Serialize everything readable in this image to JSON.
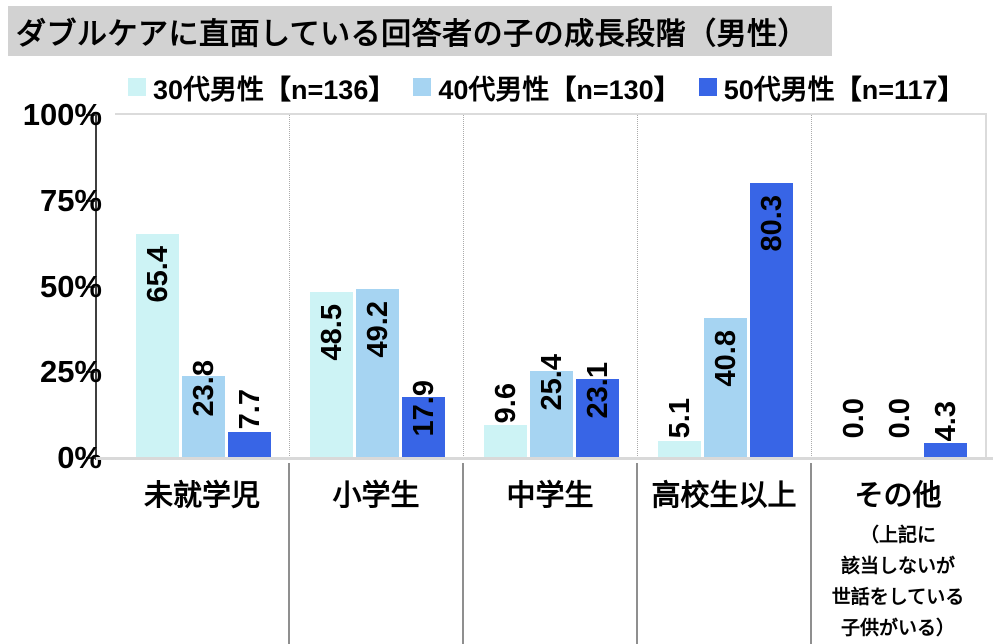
{
  "title": "ダブルケアに直面している回答者の子の成長段階（男性）",
  "colors": {
    "title_background": "#D2D2D2",
    "axis": "#3F3F3F",
    "baseline": "#D9D9D9",
    "plot_border": "#DBDBDB",
    "category_separator": "#8F8F8F",
    "dotted_separator": "#ABABAB",
    "series_30s": "#CDF3F5",
    "series_40s": "#A6D4F2",
    "series_50s": "#3865E6"
  },
  "chart_data": {
    "type": "bar",
    "title": "ダブルケアに直面している回答者の子の成長段階（男性）",
    "xlabel": "",
    "ylabel": "",
    "ylim": [
      0,
      100
    ],
    "grid": false,
    "legend_position": "top",
    "yticks": [
      "100%",
      "75%",
      "50%",
      "25%",
      "0%"
    ],
    "categories": [
      "未就学児",
      "小学生",
      "中学生",
      "高校生以上",
      "その他"
    ],
    "category_note": {
      "category": "その他",
      "lines": [
        "（上記に",
        "該当しないが",
        "世話をしている",
        "子供がいる）"
      ]
    },
    "series": [
      {
        "name": "30代男性【n=136】",
        "color": "#CDF3F5",
        "values": [
          65.4,
          48.5,
          9.6,
          5.1,
          0.0
        ]
      },
      {
        "name": "40代男性【n=130】",
        "color": "#A6D4F2",
        "values": [
          23.8,
          49.2,
          25.4,
          40.8,
          0.0
        ]
      },
      {
        "name": "50代男性【n=117】",
        "color": "#3865E6",
        "values": [
          7.7,
          17.9,
          23.1,
          80.3,
          4.3
        ]
      }
    ]
  }
}
